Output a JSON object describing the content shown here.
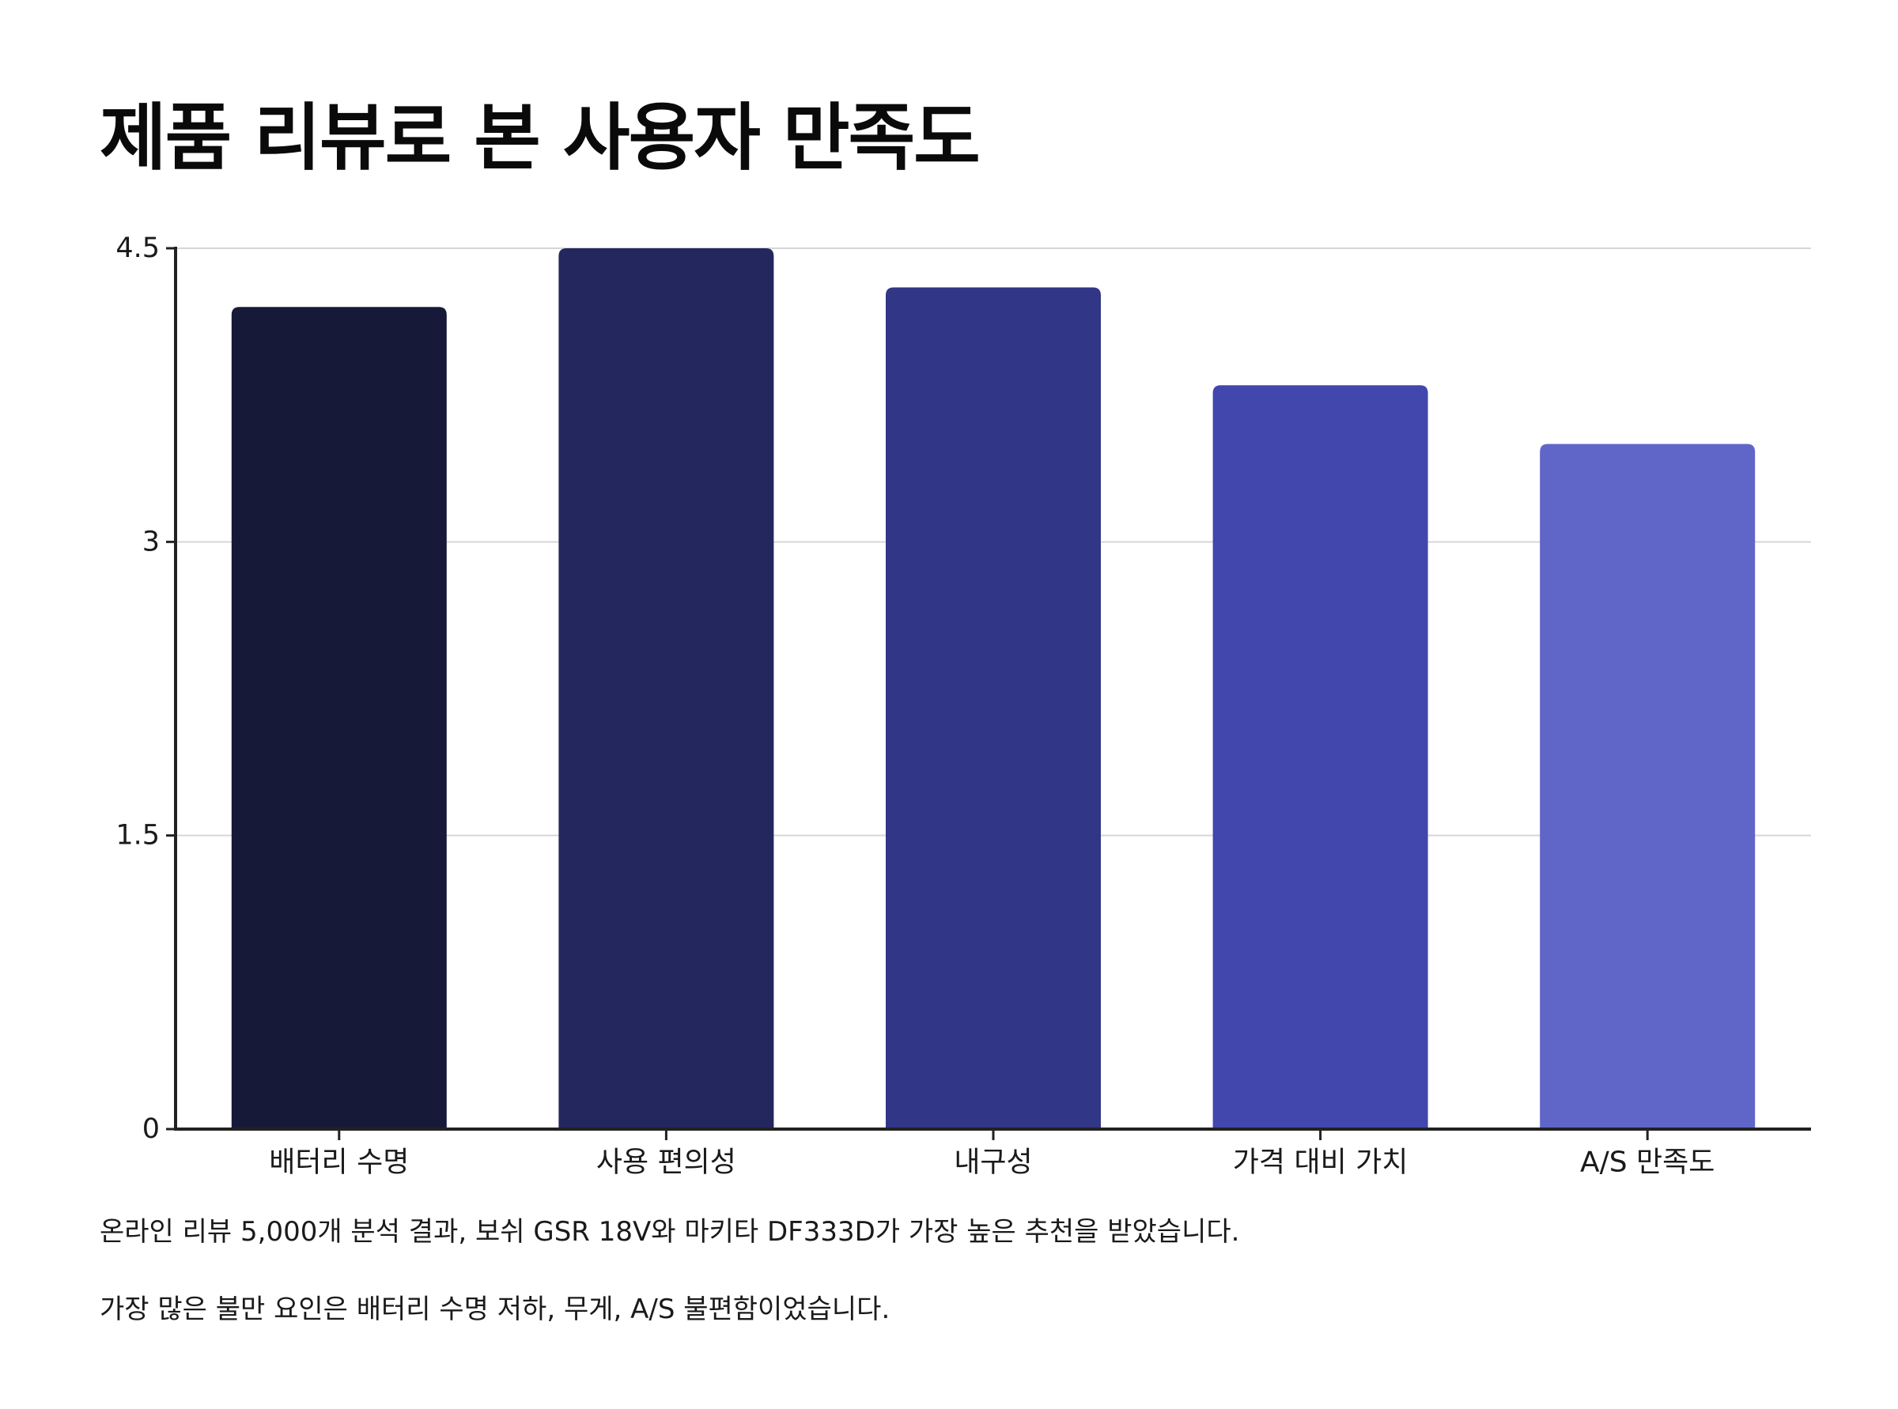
{
  "title": "제품 리뷰로 본 사용자 만족도",
  "chart_data": {
    "type": "bar",
    "title": "제품 리뷰로 본 사용자 만족도",
    "xlabel": "",
    "ylabel": "",
    "categories": [
      "배터리 수명",
      "사용 편의성",
      "내구성",
      "가격 대비 가치",
      "A/S 만족도"
    ],
    "values": [
      4.2,
      4.5,
      4.3,
      3.8,
      3.5
    ],
    "colors": [
      "#161a38",
      "#23275e",
      "#323686",
      "#4247ae",
      "#6066c8"
    ],
    "ylim": [
      0,
      4.5
    ],
    "yticks": [
      0,
      1.5,
      3,
      4.5
    ],
    "ytick_labels": [
      "0",
      "1.5",
      "3",
      "4.5"
    ],
    "grid": true,
    "legend": "none"
  },
  "notes": [
    "온라인 리뷰 5,000개 분석 결과, 보쉬 GSR 18V와 마키타 DF333D가 가장 높은 추천을 받았습니다.",
    "가장 많은 불만 요인은 배터리 수명 저하, 무게, A/S 불편함이었습니다."
  ]
}
